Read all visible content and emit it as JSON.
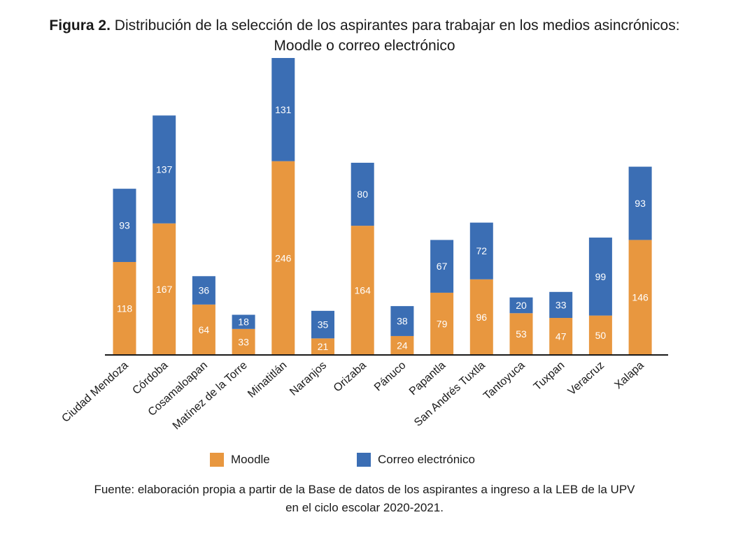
{
  "title": {
    "lead": "Figura 2.",
    "line1": "Distribución de la selección de los aspirantes para trabajar en los medios asincrónicos:",
    "line2": "Moodle o correo electrónico"
  },
  "colors": {
    "moodle": "#E8973F",
    "correo": "#3B6EB4",
    "label_text": "#ffffff",
    "axis": "#1a1a1a"
  },
  "chart_data": {
    "type": "bar",
    "stacked": true,
    "categories": [
      "Ciudad Mendoza",
      "Córdoba",
      "Cosamaloapan",
      "Matínez de la Torre",
      "Minatitlán",
      "Naranjos",
      "Orizaba",
      "Pánuco",
      "Papantla",
      "San Andrés Tuxtla",
      "Tantoyuca",
      "Tuxpan",
      "Veracruz",
      "Xalapa"
    ],
    "series": [
      {
        "name": "Moodle",
        "values": [
          118,
          167,
          64,
          33,
          246,
          21,
          164,
          24,
          79,
          96,
          53,
          47,
          50,
          146
        ]
      },
      {
        "name": "Correo electrónico",
        "values": [
          93,
          137,
          36,
          18,
          131,
          35,
          80,
          38,
          67,
          72,
          20,
          33,
          99,
          93
        ]
      }
    ],
    "ylim": [
      0,
      377
    ],
    "xlabel": "",
    "ylabel": "",
    "legend_position": "bottom"
  },
  "legend": {
    "moodle_label": "Moodle",
    "correo_label": "Correo electrónico"
  },
  "source": {
    "line1": "Fuente: elaboración propia a partir de la Base de datos de los aspirantes a ingreso a la LEB de la UPV",
    "line2": "en el ciclo escolar 2020-2021."
  }
}
